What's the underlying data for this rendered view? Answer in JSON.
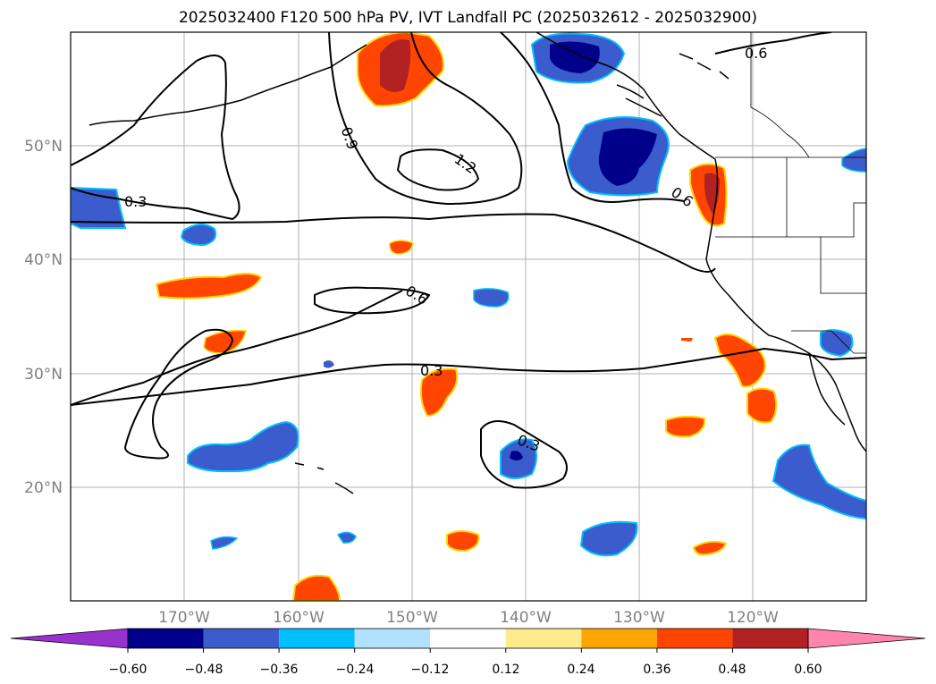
{
  "title": "2025032400 F120 500 hPa PV, IVT Landfall PC (2025032612 - 2025032900)",
  "lat_labels": [
    "50°N",
    "40°N",
    "30°N",
    "20°N"
  ],
  "lon_labels": [
    "170°W",
    "160°W",
    "150°W",
    "140°W",
    "130°W",
    "120°W"
  ],
  "contour_labels": [
    "0.3",
    "0.9",
    "1.2",
    "0.6",
    "0.6",
    "0.6",
    "0.3",
    "0.3"
  ],
  "colorbar": {
    "ticks": [
      "−0.60",
      "−0.48",
      "−0.36",
      "−0.24",
      "−0.12",
      "0.12",
      "0.24",
      "0.36",
      "0.48",
      "0.60"
    ],
    "colors": [
      "#9932cc",
      "#00008b",
      "#3a5ccc",
      "#00bfff",
      "#b0e2ff",
      "#ffffff",
      "#ffeb8c",
      "#ffa500",
      "#ff4500",
      "#b22222",
      "#ff85ac"
    ]
  }
}
